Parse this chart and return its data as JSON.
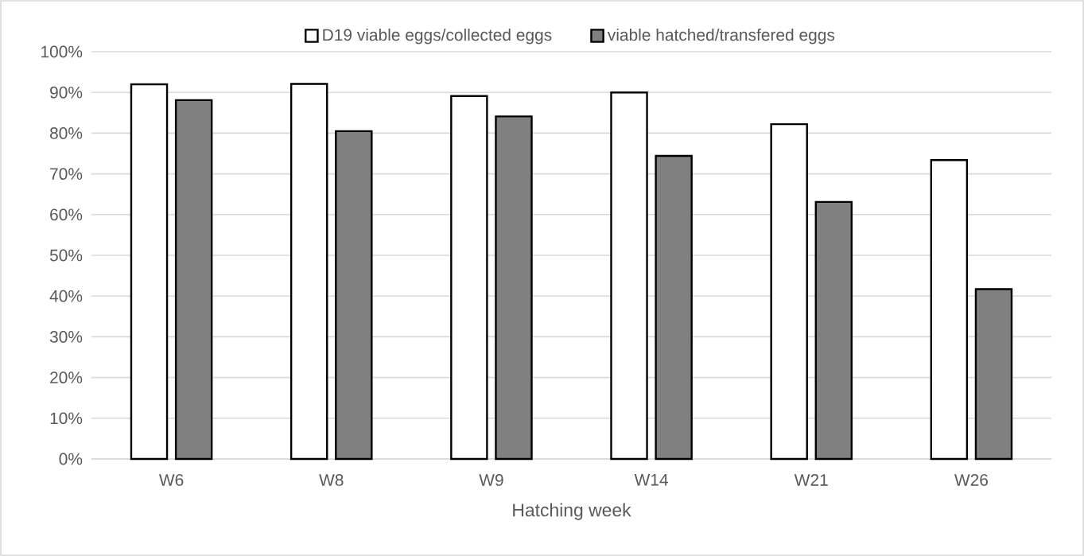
{
  "chart_data": {
    "type": "bar",
    "xlabel": "Hatching week",
    "categories": [
      "W6",
      "W8",
      "W9",
      "W14",
      "W21",
      "W26"
    ],
    "series": [
      {
        "name": "D19 viable eggs/collected eggs",
        "color": "#ffffff",
        "values": [
          92,
          92.1,
          89.1,
          90,
          82.2,
          73.4
        ]
      },
      {
        "name": "viable hatched/transfered eggs",
        "color": "#808080",
        "values": [
          88.1,
          80.5,
          84.1,
          74.4,
          63.1,
          41.7
        ]
      }
    ],
    "ylim": [
      0,
      100
    ],
    "yticks": [
      {
        "value": 0,
        "label": "0%"
      },
      {
        "value": 10,
        "label": "10%"
      },
      {
        "value": 20,
        "label": "20%"
      },
      {
        "value": 30,
        "label": "30%"
      },
      {
        "value": 40,
        "label": "40%"
      },
      {
        "value": 50,
        "label": "50%"
      },
      {
        "value": 60,
        "label": "60%"
      },
      {
        "value": 70,
        "label": "70%"
      },
      {
        "value": 80,
        "label": "80%"
      },
      {
        "value": 90,
        "label": "90%"
      },
      {
        "value": 100,
        "label": "100%"
      }
    ],
    "grid": "y",
    "legend": "top"
  }
}
